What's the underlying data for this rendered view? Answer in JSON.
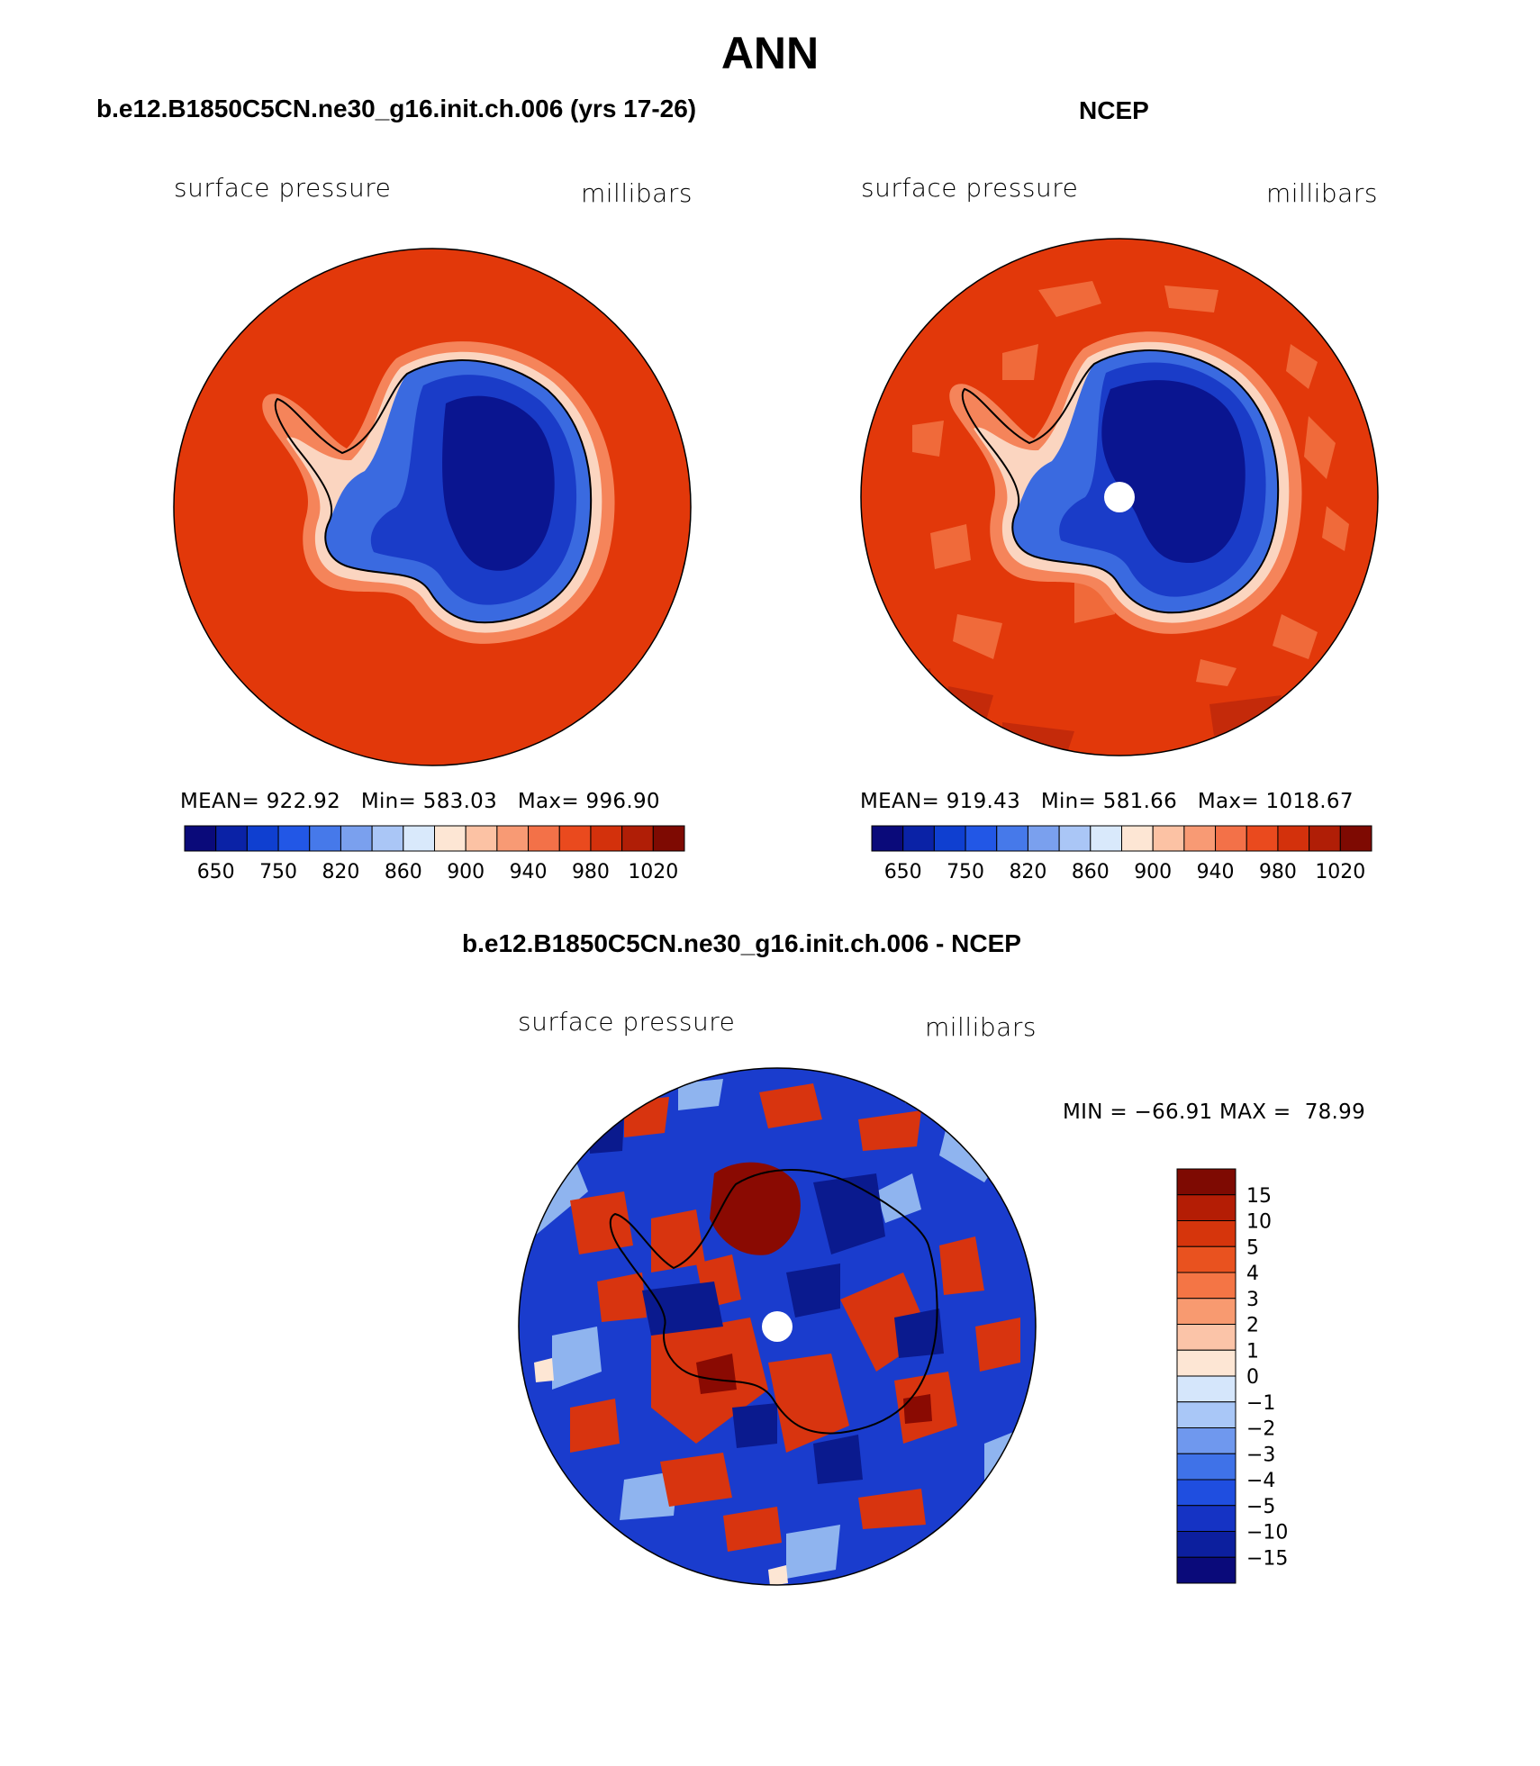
{
  "figure": {
    "title": "ANN"
  },
  "panels": [
    {
      "title": "b.e12.B1850C5CN.ne30_g16.init.ch.006 (yrs 17-26)",
      "left_label": "surface pressure",
      "right_label": "millibars",
      "stats": {
        "mean_label": "MEAN=",
        "mean": "922.92",
        "min_label": "Min=",
        "min": "583.03",
        "max_label": "Max=",
        "max": "996.90"
      }
    },
    {
      "title": "NCEP",
      "left_label": "surface pressure",
      "right_label": "millibars",
      "stats": {
        "mean_label": "MEAN=",
        "mean": "919.43",
        "min_label": "Min=",
        "min": "581.66",
        "max_label": "Max=",
        "max": "1018.67"
      }
    },
    {
      "title": "b.e12.B1850C5CN.ne30_g16.init.ch.006 - NCEP",
      "left_label": "surface pressure",
      "right_label": "millibars",
      "range_text": "MIN = −66.91 MAX =  78.99"
    }
  ],
  "colorbar_abs": {
    "colors": [
      "#0a0a7a",
      "#0a22a6",
      "#0f3fd0",
      "#2257e6",
      "#4679ea",
      "#7aa0ee",
      "#aac6f6",
      "#d9e9fb",
      "#fde6d4",
      "#fcc2a4",
      "#f89a74",
      "#f37148",
      "#ea4a1e",
      "#d3310c",
      "#b01e06",
      "#7e0a02"
    ],
    "tick_labels": [
      "650",
      "750",
      "820",
      "860",
      "900",
      "940",
      "980",
      "1020"
    ]
  },
  "colorbar_diff": {
    "colors": [
      "#0a0a7a",
      "#0c1f9e",
      "#1533c4",
      "#1f4ee0",
      "#3f72e8",
      "#6f98ee",
      "#a9c7f7",
      "#d5e6fb",
      "#fde6d4",
      "#fbc4a8",
      "#f89a70",
      "#f47545",
      "#e9521f",
      "#d6350c",
      "#b41d05",
      "#7e0a02"
    ],
    "tick_labels": [
      "15",
      "10",
      "5",
      "4",
      "3",
      "2",
      "1",
      "0",
      "−1",
      "−2",
      "−3",
      "−4",
      "−5",
      "−10",
      "−15"
    ]
  },
  "map_colors": {
    "ocean_high": "#e2380a",
    "ocean_patch": "#f06a3a",
    "ocean_dark": "#c42a0a",
    "ice_core": "#0a1590",
    "ice_mid": "#1a3cc8",
    "ice_edge": "#3a6ae0",
    "coast_fade": "#cfe3f8",
    "diff_red": "#d8340f",
    "diff_darkred": "#8a0a02",
    "diff_blue": "#1a3ccd",
    "diff_darkblue": "#0a1a8e",
    "diff_lightblue": "#8fb4ef"
  }
}
